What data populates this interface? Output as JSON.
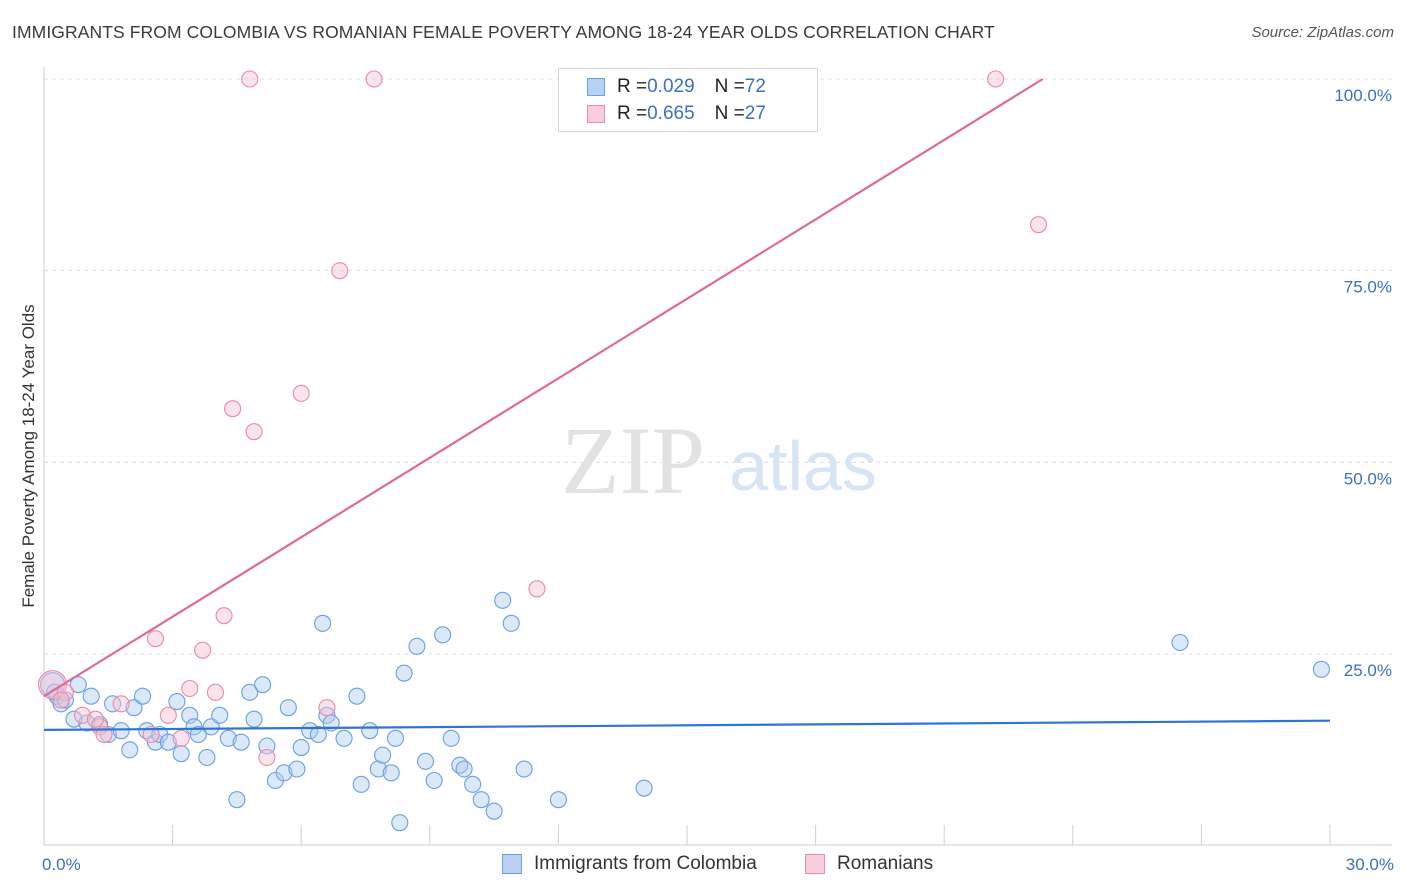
{
  "title": "IMMIGRANTS FROM COLOMBIA VS ROMANIAN FEMALE POVERTY AMONG 18-24 YEAR OLDS CORRELATION CHART",
  "source": "Source: ZipAtlas.com",
  "watermark": {
    "zip": "ZIP",
    "atlas": "atlas"
  },
  "legend": {
    "colombia": {
      "r_label": "R = ",
      "r_value": "0.029",
      "n_label": "N = ",
      "n_value": "72"
    },
    "romanians": {
      "r_label": "R = ",
      "r_value": "0.665",
      "n_label": "N = ",
      "n_value": "27"
    }
  },
  "bottom_legend": {
    "colombia": "Immigrants from Colombia",
    "romanians": "Romanians"
  },
  "colors": {
    "blue": "#6a9fe0",
    "blue_fill": "#aecbf0",
    "blue_line": "#2f74d0",
    "pink": "#e88aa8",
    "pink_fill": "#f6c1d2",
    "pink_line": "#e06a93",
    "tick_text": "#3d6fc4"
  },
  "chart_data": {
    "type": "scatter",
    "title": "IMMIGRANTS FROM COLOMBIA VS ROMANIAN FEMALE POVERTY AMONG 18-24 YEAR OLDS CORRELATION CHART",
    "xlabel": "",
    "ylabel": "Female Poverty Among 18-24 Year Olds",
    "xlim": [
      0,
      30
    ],
    "ylim": [
      0,
      102
    ],
    "x_tick_labels": [
      "0.0%",
      "30.0%"
    ],
    "y_ticks": [
      25,
      50,
      75,
      100
    ],
    "y_tick_labels": [
      "25.0%",
      "50.0%",
      "75.0%",
      "100.0%"
    ],
    "series": [
      {
        "name": "Immigrants from Colombia",
        "trend": {
          "x0": 0,
          "y0": 15.1,
          "x1": 30,
          "y1": 16.3
        },
        "points": [
          [
            0.2,
            21.0
          ],
          [
            0.3,
            19.5
          ],
          [
            0.4,
            18.5
          ],
          [
            0.5,
            19.0
          ],
          [
            0.7,
            16.5
          ],
          [
            0.8,
            21.0
          ],
          [
            1.0,
            16.0
          ],
          [
            1.1,
            19.5
          ],
          [
            1.3,
            15.8
          ],
          [
            1.5,
            14.5
          ],
          [
            1.6,
            18.5
          ],
          [
            1.8,
            15.0
          ],
          [
            2.0,
            12.5
          ],
          [
            2.1,
            18.0
          ],
          [
            2.3,
            19.5
          ],
          [
            2.4,
            15.0
          ],
          [
            2.6,
            13.5
          ],
          [
            2.7,
            14.5
          ],
          [
            2.9,
            13.5
          ],
          [
            3.1,
            18.8
          ],
          [
            3.2,
            12.0
          ],
          [
            3.4,
            17.0
          ],
          [
            3.5,
            15.5
          ],
          [
            3.6,
            14.5
          ],
          [
            3.8,
            11.5
          ],
          [
            3.9,
            15.5
          ],
          [
            4.1,
            17.0
          ],
          [
            4.3,
            14.0
          ],
          [
            4.5,
            6.0
          ],
          [
            4.6,
            13.5
          ],
          [
            4.8,
            20.0
          ],
          [
            4.9,
            16.5
          ],
          [
            5.1,
            21.0
          ],
          [
            5.2,
            13.0
          ],
          [
            5.4,
            8.5
          ],
          [
            5.6,
            9.5
          ],
          [
            5.7,
            18.0
          ],
          [
            5.9,
            10.0
          ],
          [
            6.0,
            12.8
          ],
          [
            6.2,
            15.0
          ],
          [
            6.4,
            14.5
          ],
          [
            6.5,
            29.0
          ],
          [
            6.6,
            17.0
          ],
          [
            6.7,
            16.0
          ],
          [
            7.0,
            14.0
          ],
          [
            7.3,
            19.5
          ],
          [
            7.4,
            8.0
          ],
          [
            7.6,
            15.0
          ],
          [
            7.8,
            10.0
          ],
          [
            7.9,
            11.8
          ],
          [
            8.1,
            9.5
          ],
          [
            8.2,
            14.0
          ],
          [
            8.3,
            3.0
          ],
          [
            8.4,
            22.5
          ],
          [
            8.7,
            26.0
          ],
          [
            8.9,
            11.0
          ],
          [
            9.1,
            8.5
          ],
          [
            9.3,
            27.5
          ],
          [
            9.5,
            14.0
          ],
          [
            9.7,
            10.5
          ],
          [
            9.8,
            10.0
          ],
          [
            10.0,
            8.0
          ],
          [
            10.2,
            6.0
          ],
          [
            10.5,
            4.5
          ],
          [
            10.7,
            32.0
          ],
          [
            10.9,
            29.0
          ],
          [
            11.2,
            10.0
          ],
          [
            12.0,
            6.0
          ],
          [
            14.0,
            7.5
          ],
          [
            26.5,
            26.5
          ],
          [
            29.8,
            23.0
          ],
          [
            0.25,
            20.0
          ]
        ]
      },
      {
        "name": "Romanians",
        "trend": {
          "x0": 0,
          "y0": 19.5,
          "x1": 23.3,
          "y1": 100
        },
        "points": [
          [
            0.2,
            21.0
          ],
          [
            0.5,
            20.0
          ],
          [
            0.9,
            17.0
          ],
          [
            1.3,
            15.5
          ],
          [
            1.4,
            14.5
          ],
          [
            1.8,
            18.5
          ],
          [
            2.5,
            14.5
          ],
          [
            2.6,
            27.0
          ],
          [
            2.9,
            17.0
          ],
          [
            3.2,
            14.0
          ],
          [
            3.4,
            20.5
          ],
          [
            3.7,
            25.5
          ],
          [
            4.0,
            20.0
          ],
          [
            4.2,
            30.0
          ],
          [
            4.4,
            57.0
          ],
          [
            4.8,
            100.0
          ],
          [
            4.9,
            54.0
          ],
          [
            5.2,
            11.5
          ],
          [
            6.0,
            59.0
          ],
          [
            6.6,
            18.0
          ],
          [
            6.9,
            75.0
          ],
          [
            7.7,
            100.0
          ],
          [
            11.5,
            33.5
          ],
          [
            22.2,
            100.0
          ],
          [
            23.2,
            81.0
          ],
          [
            0.4,
            19.0
          ],
          [
            1.2,
            16.5
          ]
        ]
      }
    ]
  }
}
